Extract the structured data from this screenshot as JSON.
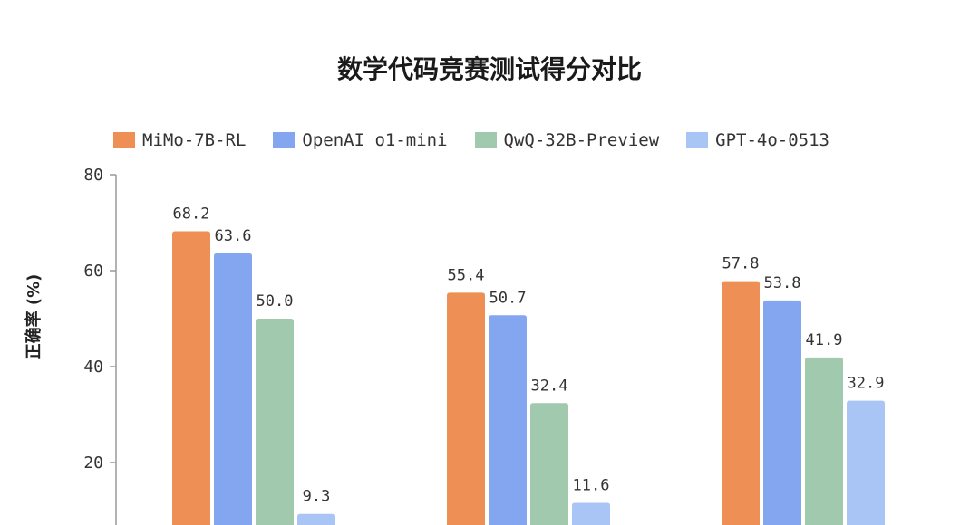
{
  "chart_data": {
    "type": "bar",
    "title": "数学代码竞赛测试得分对比",
    "ylabel": "正确率 (%)",
    "xlabel": "",
    "ylim": [
      0,
      80
    ],
    "yticks": [
      20,
      40,
      60,
      80
    ],
    "grid": false,
    "legend_position": "top",
    "categories": [
      "",
      "",
      ""
    ],
    "series": [
      {
        "name": "MiMo-7B-RL",
        "color": "#ee9055",
        "values": [
          68.2,
          55.4,
          57.8
        ]
      },
      {
        "name": "OpenAI o1-mini",
        "color": "#84a5ef",
        "values": [
          63.6,
          50.7,
          53.8
        ]
      },
      {
        "name": "QwQ-32B-Preview",
        "color": "#a0c9ad",
        "values": [
          50.0,
          32.4,
          41.9
        ]
      },
      {
        "name": "GPT-4o-0513",
        "color": "#a8c5f5",
        "values": [
          9.3,
          11.6,
          32.9
        ]
      }
    ]
  }
}
